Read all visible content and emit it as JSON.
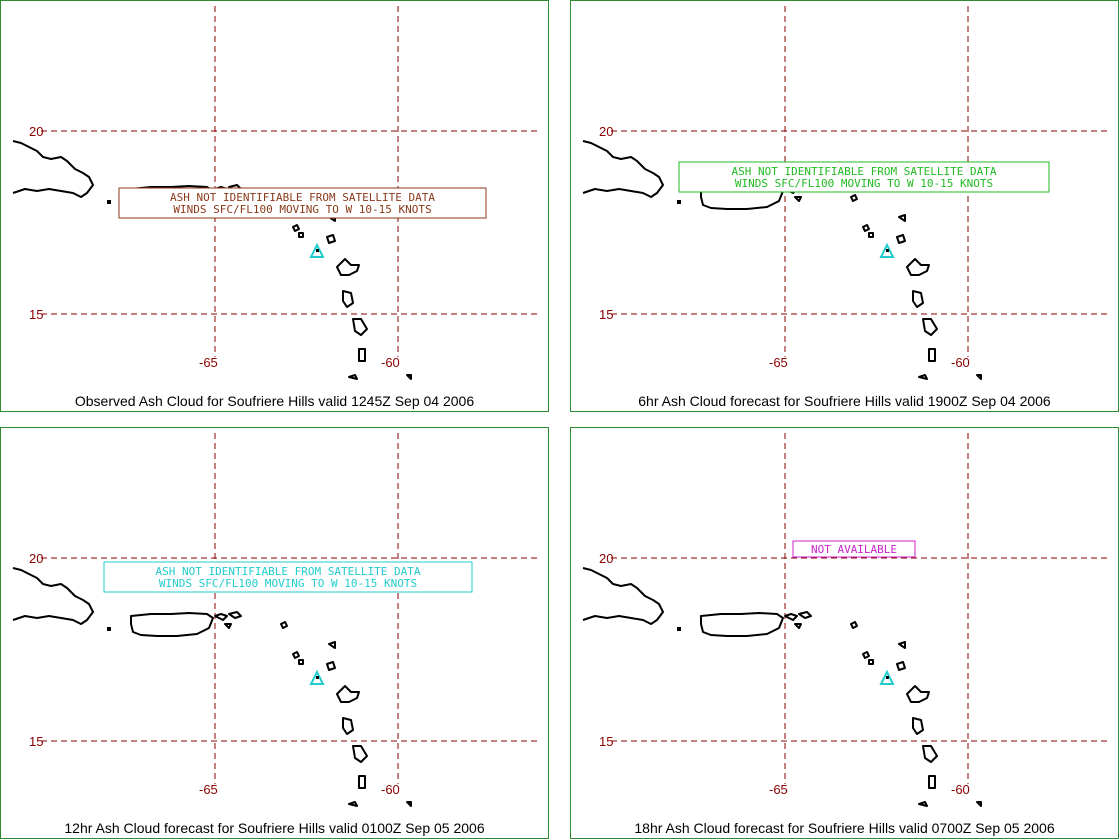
{
  "panels": [
    {
      "caption": "Observed Ash Cloud for Soufriere  Hills valid 1245Z Sep 04 2006",
      "note_lines": [
        "ASH NOT IDENTIFIABLE FROM SATELLITE DATA",
        "WINDS SFC/FL100 MOVING TO W 10-15 KNOTS"
      ],
      "note_color": "#8b3a1a"
    },
    {
      "caption": "6hr Ash Cloud forecast for Soufriere  Hills valid 1900Z Sep 04 2006",
      "note_lines": [
        "ASH NOT IDENTIFIABLE FROM SATELLITE DATA",
        "WINDS SFC/FL100 MOVING TO W 10-15 KNOTS"
      ],
      "note_color": "#22bb22"
    },
    {
      "caption": "12hr Ash Cloud forecast for Soufriere  Hills valid 0100Z Sep 05 2006",
      "note_lines": [
        "ASH NOT IDENTIFIABLE FROM SATELLITE DATA",
        "WINDS SFC/FL100 MOVING TO W 10-15 KNOTS"
      ],
      "note_color": "#22cccc"
    },
    {
      "caption": "18hr Ash Cloud forecast for Soufriere  Hills valid 0700Z Sep 05 2006",
      "note_lines": [
        "NOT AVAILABLE"
      ],
      "note_color": "#cc22cc"
    }
  ],
  "grid_labels": {
    "lat_north": "20",
    "lat_south": "15",
    "lon_west": "-65",
    "lon_east": "-60"
  },
  "colors": {
    "border": "#2e8b2e",
    "grid": "#8b0000",
    "volcano": "#22cccc",
    "coast": "#000000"
  },
  "volcano_icon": "volcano-triangle-icon"
}
